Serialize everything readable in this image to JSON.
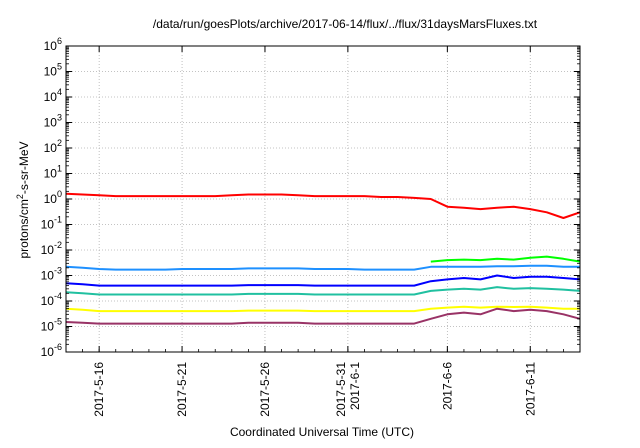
{
  "chart_data": {
    "type": "line",
    "title": "/data/run/goesPlots/archive/2017-06-14/flux/../flux/31daysMarsFluxes.txt",
    "xlabel": "Coordinated Universal Time (UTC)",
    "ylabel_base": "protons/cm",
    "ylabel_sup": "2",
    "ylabel_tail": "-s-sr-MeV",
    "x_start": "2017-05-14",
    "x_end": "2017-06-14",
    "y_scale": "log",
    "ylim": [
      1e-06,
      1000000.0
    ],
    "grid": true,
    "y_ticks": [
      {
        "base": "10",
        "exp": "-6"
      },
      {
        "base": "10",
        "exp": "-5"
      },
      {
        "base": "10",
        "exp": "-4"
      },
      {
        "base": "10",
        "exp": "-3"
      },
      {
        "base": "10",
        "exp": "-2"
      },
      {
        "base": "10",
        "exp": "-1"
      },
      {
        "base": "10",
        "exp": "0"
      },
      {
        "base": "10",
        "exp": "1"
      },
      {
        "base": "10",
        "exp": "2"
      },
      {
        "base": "10",
        "exp": "3"
      },
      {
        "base": "10",
        "exp": "4"
      },
      {
        "base": "10",
        "exp": "5"
      },
      {
        "base": "10",
        "exp": "6"
      }
    ],
    "x_ticks": [
      {
        "date": "2017-05-16",
        "lines": [
          "2017-5-16"
        ]
      },
      {
        "date": "2017-05-21",
        "lines": [
          "2017-5-21"
        ]
      },
      {
        "date": "2017-05-26",
        "lines": [
          "2017-5-26"
        ]
      },
      {
        "date": "2017-05-31",
        "lines": [
          "2017-5-31",
          "2017-6-1"
        ]
      },
      {
        "date": "2017-06-06",
        "lines": [
          "2017-6-6"
        ]
      },
      {
        "date": "2017-06-11",
        "lines": [
          "2017-6-11"
        ]
      }
    ],
    "series": [
      {
        "color": "#ff0000",
        "values": [
          [
            "2017-05-14",
            1.6
          ],
          [
            "2017-05-15",
            1.5
          ],
          [
            "2017-05-16",
            1.4
          ],
          [
            "2017-05-17",
            1.3
          ],
          [
            "2017-05-18",
            1.3
          ],
          [
            "2017-05-19",
            1.3
          ],
          [
            "2017-05-20",
            1.3
          ],
          [
            "2017-05-21",
            1.3
          ],
          [
            "2017-05-22",
            1.3
          ],
          [
            "2017-05-23",
            1.3
          ],
          [
            "2017-05-24",
            1.4
          ],
          [
            "2017-05-25",
            1.5
          ],
          [
            "2017-05-26",
            1.5
          ],
          [
            "2017-05-27",
            1.5
          ],
          [
            "2017-05-28",
            1.4
          ],
          [
            "2017-05-29",
            1.3
          ],
          [
            "2017-05-30",
            1.3
          ],
          [
            "2017-05-31",
            1.3
          ],
          [
            "2017-06-01",
            1.3
          ],
          [
            "2017-06-02",
            1.2
          ],
          [
            "2017-06-03",
            1.2
          ],
          [
            "2017-06-04",
            1.1
          ],
          [
            "2017-06-05",
            1.0
          ],
          [
            "2017-06-06",
            0.5
          ],
          [
            "2017-06-07",
            0.45
          ],
          [
            "2017-06-08",
            0.4
          ],
          [
            "2017-06-09",
            0.45
          ],
          [
            "2017-06-10",
            0.5
          ],
          [
            "2017-06-11",
            0.4
          ],
          [
            "2017-06-12",
            0.3
          ],
          [
            "2017-06-13",
            0.18
          ],
          [
            "2017-06-14",
            0.3
          ]
        ]
      },
      {
        "color": "#00ff00",
        "values": [
          [
            "2017-06-05",
            0.0035
          ],
          [
            "2017-06-06",
            0.004
          ],
          [
            "2017-06-07",
            0.0042
          ],
          [
            "2017-06-08",
            0.004
          ],
          [
            "2017-06-09",
            0.0045
          ],
          [
            "2017-06-10",
            0.0042
          ],
          [
            "2017-06-11",
            0.005
          ],
          [
            "2017-06-12",
            0.0055
          ],
          [
            "2017-06-13",
            0.0045
          ],
          [
            "2017-06-14",
            0.0035
          ]
        ]
      },
      {
        "color": "#1e90ff",
        "values": [
          [
            "2017-05-14",
            0.0022
          ],
          [
            "2017-05-15",
            0.002
          ],
          [
            "2017-05-16",
            0.0018
          ],
          [
            "2017-05-17",
            0.0017
          ],
          [
            "2017-05-18",
            0.0017
          ],
          [
            "2017-05-19",
            0.0017
          ],
          [
            "2017-05-20",
            0.0017
          ],
          [
            "2017-05-21",
            0.0018
          ],
          [
            "2017-05-22",
            0.0018
          ],
          [
            "2017-05-23",
            0.0018
          ],
          [
            "2017-05-24",
            0.0018
          ],
          [
            "2017-05-25",
            0.0019
          ],
          [
            "2017-05-26",
            0.0019
          ],
          [
            "2017-05-27",
            0.0019
          ],
          [
            "2017-05-28",
            0.0019
          ],
          [
            "2017-05-29",
            0.0018
          ],
          [
            "2017-05-30",
            0.0018
          ],
          [
            "2017-05-31",
            0.0018
          ],
          [
            "2017-06-01",
            0.0017
          ],
          [
            "2017-06-02",
            0.0017
          ],
          [
            "2017-06-03",
            0.0017
          ],
          [
            "2017-06-04",
            0.0017
          ],
          [
            "2017-06-05",
            0.0022
          ],
          [
            "2017-06-06",
            0.0022
          ],
          [
            "2017-06-07",
            0.0022
          ],
          [
            "2017-06-08",
            0.0022
          ],
          [
            "2017-06-09",
            0.0023
          ],
          [
            "2017-06-10",
            0.0023
          ],
          [
            "2017-06-11",
            0.0024
          ],
          [
            "2017-06-12",
            0.0024
          ],
          [
            "2017-06-13",
            0.0022
          ],
          [
            "2017-06-14",
            0.0022
          ]
        ]
      },
      {
        "color": "#0000ff",
        "values": [
          [
            "2017-05-14",
            0.0005
          ],
          [
            "2017-05-15",
            0.00045
          ],
          [
            "2017-05-16",
            0.0004
          ],
          [
            "2017-05-17",
            0.0004
          ],
          [
            "2017-05-18",
            0.0004
          ],
          [
            "2017-05-19",
            0.0004
          ],
          [
            "2017-05-20",
            0.0004
          ],
          [
            "2017-05-21",
            0.0004
          ],
          [
            "2017-05-22",
            0.0004
          ],
          [
            "2017-05-23",
            0.0004
          ],
          [
            "2017-05-24",
            0.0004
          ],
          [
            "2017-05-25",
            0.00042
          ],
          [
            "2017-05-26",
            0.00042
          ],
          [
            "2017-05-27",
            0.00042
          ],
          [
            "2017-05-28",
            0.00042
          ],
          [
            "2017-05-29",
            0.0004
          ],
          [
            "2017-05-30",
            0.0004
          ],
          [
            "2017-05-31",
            0.0004
          ],
          [
            "2017-06-01",
            0.0004
          ],
          [
            "2017-06-02",
            0.0004
          ],
          [
            "2017-06-03",
            0.0004
          ],
          [
            "2017-06-04",
            0.0004
          ],
          [
            "2017-06-05",
            0.0006
          ],
          [
            "2017-06-06",
            0.0007
          ],
          [
            "2017-06-07",
            0.0008
          ],
          [
            "2017-06-08",
            0.0007
          ],
          [
            "2017-06-09",
            0.001
          ],
          [
            "2017-06-10",
            0.0008
          ],
          [
            "2017-06-11",
            0.0009
          ],
          [
            "2017-06-12",
            0.0009
          ],
          [
            "2017-06-13",
            0.0008
          ],
          [
            "2017-06-14",
            0.0007
          ]
        ]
      },
      {
        "color": "#20c0a0",
        "values": [
          [
            "2017-05-14",
            0.00022
          ],
          [
            "2017-05-15",
            0.0002
          ],
          [
            "2017-05-16",
            0.00018
          ],
          [
            "2017-05-17",
            0.00018
          ],
          [
            "2017-05-18",
            0.00018
          ],
          [
            "2017-05-19",
            0.00018
          ],
          [
            "2017-05-20",
            0.00018
          ],
          [
            "2017-05-21",
            0.00018
          ],
          [
            "2017-05-22",
            0.00018
          ],
          [
            "2017-05-23",
            0.00018
          ],
          [
            "2017-05-24",
            0.00018
          ],
          [
            "2017-05-25",
            0.00019
          ],
          [
            "2017-05-26",
            0.00019
          ],
          [
            "2017-05-27",
            0.00019
          ],
          [
            "2017-05-28",
            0.00019
          ],
          [
            "2017-05-29",
            0.00018
          ],
          [
            "2017-05-30",
            0.00018
          ],
          [
            "2017-05-31",
            0.00018
          ],
          [
            "2017-06-01",
            0.00018
          ],
          [
            "2017-06-02",
            0.00018
          ],
          [
            "2017-06-03",
            0.00018
          ],
          [
            "2017-06-04",
            0.00018
          ],
          [
            "2017-06-05",
            0.00025
          ],
          [
            "2017-06-06",
            0.00028
          ],
          [
            "2017-06-07",
            0.0003
          ],
          [
            "2017-06-08",
            0.00028
          ],
          [
            "2017-06-09",
            0.00035
          ],
          [
            "2017-06-10",
            0.0003
          ],
          [
            "2017-06-11",
            0.00032
          ],
          [
            "2017-06-12",
            0.0003
          ],
          [
            "2017-06-13",
            0.00028
          ],
          [
            "2017-06-14",
            0.00025
          ]
        ]
      },
      {
        "color": "#ffff00",
        "values": [
          [
            "2017-05-14",
            5e-05
          ],
          [
            "2017-05-15",
            4.5e-05
          ],
          [
            "2017-05-16",
            4e-05
          ],
          [
            "2017-05-17",
            4e-05
          ],
          [
            "2017-05-18",
            4e-05
          ],
          [
            "2017-05-19",
            4e-05
          ],
          [
            "2017-05-20",
            4e-05
          ],
          [
            "2017-05-21",
            4e-05
          ],
          [
            "2017-05-22",
            4e-05
          ],
          [
            "2017-05-23",
            4e-05
          ],
          [
            "2017-05-24",
            4e-05
          ],
          [
            "2017-05-25",
            4.2e-05
          ],
          [
            "2017-05-26",
            4.2e-05
          ],
          [
            "2017-05-27",
            4.2e-05
          ],
          [
            "2017-05-28",
            4.2e-05
          ],
          [
            "2017-05-29",
            4e-05
          ],
          [
            "2017-05-30",
            4e-05
          ],
          [
            "2017-05-31",
            4e-05
          ],
          [
            "2017-06-01",
            4e-05
          ],
          [
            "2017-06-02",
            4e-05
          ],
          [
            "2017-06-03",
            4e-05
          ],
          [
            "2017-06-04",
            4e-05
          ],
          [
            "2017-06-05",
            5e-05
          ],
          [
            "2017-06-06",
            5.5e-05
          ],
          [
            "2017-06-07",
            6e-05
          ],
          [
            "2017-06-08",
            5.5e-05
          ],
          [
            "2017-06-09",
            6e-05
          ],
          [
            "2017-06-10",
            5.8e-05
          ],
          [
            "2017-06-11",
            6e-05
          ],
          [
            "2017-06-12",
            5.5e-05
          ],
          [
            "2017-06-13",
            5e-05
          ],
          [
            "2017-06-14",
            5e-05
          ]
        ]
      },
      {
        "color": "#993366",
        "values": [
          [
            "2017-05-14",
            1.5e-05
          ],
          [
            "2017-05-15",
            1.4e-05
          ],
          [
            "2017-05-16",
            1.3e-05
          ],
          [
            "2017-05-17",
            1.3e-05
          ],
          [
            "2017-05-18",
            1.3e-05
          ],
          [
            "2017-05-19",
            1.3e-05
          ],
          [
            "2017-05-20",
            1.3e-05
          ],
          [
            "2017-05-21",
            1.3e-05
          ],
          [
            "2017-05-22",
            1.3e-05
          ],
          [
            "2017-05-23",
            1.3e-05
          ],
          [
            "2017-05-24",
            1.3e-05
          ],
          [
            "2017-05-25",
            1.4e-05
          ],
          [
            "2017-05-26",
            1.4e-05
          ],
          [
            "2017-05-27",
            1.4e-05
          ],
          [
            "2017-05-28",
            1.4e-05
          ],
          [
            "2017-05-29",
            1.3e-05
          ],
          [
            "2017-05-30",
            1.3e-05
          ],
          [
            "2017-05-31",
            1.3e-05
          ],
          [
            "2017-06-01",
            1.3e-05
          ],
          [
            "2017-06-02",
            1.3e-05
          ],
          [
            "2017-06-03",
            1.3e-05
          ],
          [
            "2017-06-04",
            1.3e-05
          ],
          [
            "2017-06-05",
            2e-05
          ],
          [
            "2017-06-06",
            3e-05
          ],
          [
            "2017-06-07",
            3.5e-05
          ],
          [
            "2017-06-08",
            3e-05
          ],
          [
            "2017-06-09",
            5e-05
          ],
          [
            "2017-06-10",
            4e-05
          ],
          [
            "2017-06-11",
            4.5e-05
          ],
          [
            "2017-06-12",
            4e-05
          ],
          [
            "2017-06-13",
            3e-05
          ],
          [
            "2017-06-14",
            2e-05
          ]
        ]
      }
    ]
  }
}
